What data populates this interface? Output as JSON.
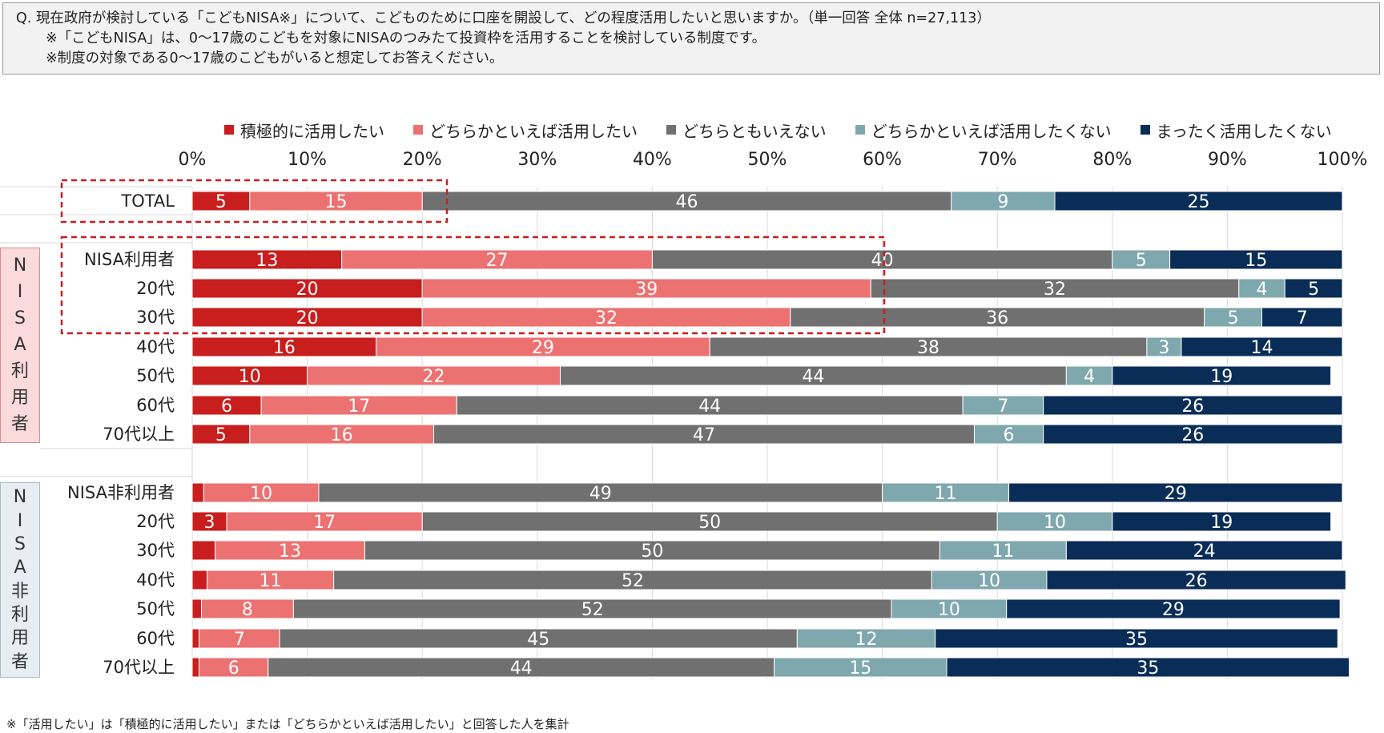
{
  "question": {
    "line1": "Q. 現在政府が検討している「こどもNISA※」について、こどものために口座を開設して、どの程度活用したいと思いますか。（単一回答 全体 n=27,113）",
    "line2": "※「こどもNISA」は、0〜17歳のこどもを対象にNISAのつみたて投資枠を活用することを検討している制度です。",
    "line3": "※制度の対象である0〜17歳のこどもがいると想定してお答えください。"
  },
  "footnote": "※「活用したい」は「積極的に活用したい」または「どちらかといえば活用したい」と回答した人を集計",
  "colors": {
    "s1": "#c81e1e",
    "s2": "#ec7272",
    "s3": "#707070",
    "s4": "#7fa8ae",
    "s5": "#0a2d57",
    "nisa_group_bg": "#fadadb",
    "nisa_group_border": "#e08b8f",
    "non_group_bg": "#e6eef3",
    "non_group_border": "#a8bcc6",
    "highlight": "#c81e1e"
  },
  "groups": {
    "nisa_users_vertical": [
      "N",
      "I",
      "S",
      "A",
      "利",
      "用",
      "者"
    ],
    "nisa_non_users_vertical": [
      "N",
      "I",
      "S",
      "A",
      "非",
      "利",
      "用",
      "者"
    ]
  },
  "chart_data": {
    "type": "bar",
    "orientation": "horizontal",
    "stacked": true,
    "xlim": [
      0,
      100
    ],
    "xticks": [
      "0%",
      "10%",
      "20%",
      "30%",
      "40%",
      "50%",
      "60%",
      "70%",
      "80%",
      "90%",
      "100%"
    ],
    "legend_position": "top",
    "grid": true,
    "categories": [
      "TOTAL",
      "NISA利用者",
      "20代",
      "30代",
      "40代",
      "50代",
      "60代",
      "70代以上",
      "NISA非利用者",
      "20代",
      "30代",
      "40代",
      "50代",
      "60代",
      "70代以上"
    ],
    "series": [
      {
        "name": "積極的に活用したい",
        "values": [
          5,
          13,
          20,
          20,
          16,
          10,
          6,
          5,
          1,
          3,
          2,
          1.3,
          0.8,
          0.6,
          0.6
        ]
      },
      {
        "name": "どちらかといえば活用したい",
        "values": [
          15,
          27,
          39,
          32,
          29,
          22,
          17,
          16,
          10,
          17,
          13,
          11,
          8,
          7,
          6
        ]
      },
      {
        "name": "どちらともいえない",
        "values": [
          46,
          40,
          32,
          36,
          38,
          44,
          44,
          47,
          49,
          50,
          50,
          52,
          52,
          45,
          44
        ]
      },
      {
        "name": "どちらかといえば活用したくない",
        "values": [
          9,
          5,
          4,
          5,
          3,
          4,
          7,
          6,
          11,
          10,
          11,
          10,
          10,
          12,
          15
        ]
      },
      {
        "name": "まったく活用したくない",
        "values": [
          25,
          15,
          5,
          7,
          14,
          19,
          26,
          26,
          29,
          19,
          24,
          26,
          29,
          35,
          35
        ]
      }
    ],
    "labels": [
      [
        "5",
        "15",
        "46",
        "9",
        "25"
      ],
      [
        "13",
        "27",
        "40",
        "5",
        "15"
      ],
      [
        "20",
        "39",
        "32",
        "4",
        "5"
      ],
      [
        "20",
        "32",
        "36",
        "5",
        "7"
      ],
      [
        "16",
        "29",
        "38",
        "3",
        "14"
      ],
      [
        "10",
        "22",
        "44",
        "4",
        "19"
      ],
      [
        "6",
        "17",
        "44",
        "7",
        "26"
      ],
      [
        "5",
        "16",
        "47",
        "6",
        "26"
      ],
      [
        "",
        "10",
        "49",
        "11",
        "29"
      ],
      [
        "3",
        "17",
        "50",
        "10",
        "19"
      ],
      [
        "",
        "13",
        "50",
        "11",
        "24"
      ],
      [
        "",
        "11",
        "52",
        "10",
        "26"
      ],
      [
        "",
        "8",
        "52",
        "10",
        "29"
      ],
      [
        "",
        "7",
        "45",
        "12",
        "35"
      ],
      [
        "",
        "6",
        "44",
        "15",
        "35"
      ]
    ]
  }
}
